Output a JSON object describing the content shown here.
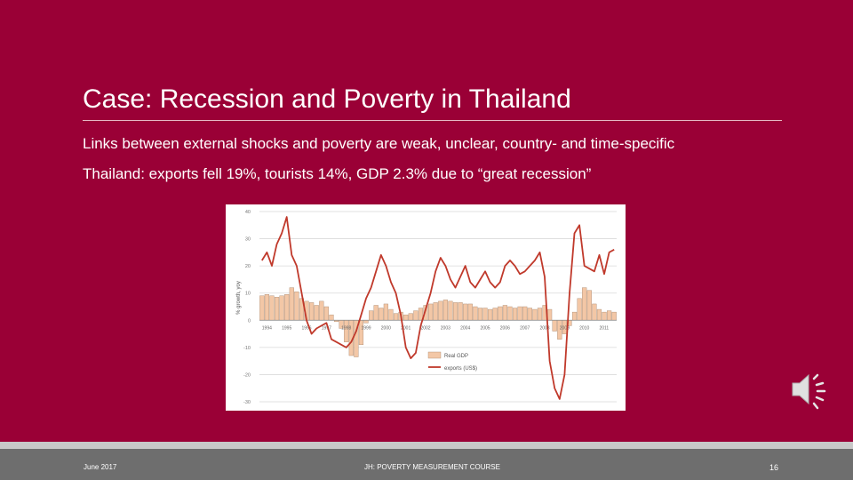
{
  "slide": {
    "title": "Case: Recession and Poverty in Thailand",
    "bullets": [
      "Links between external shocks and poverty are weak, unclear, country- and time-specific",
      "Thailand: exports fell 19%, tourists 14%, GDP 2.3% due to “great recession”"
    ]
  },
  "footer": {
    "date": "June 2017",
    "course": "JH: POVERTY MEASUREMENT COURSE",
    "page": "16"
  },
  "colors": {
    "background": "#9a0036",
    "gdp_bar": "#f3c7a6",
    "exports_line": "#c0392b"
  },
  "icons": {
    "audio": "speaker-icon"
  },
  "chart_data": {
    "type": "bar",
    "ylabel": "% growth, yoy",
    "ylim": [
      -30,
      40
    ],
    "yticks": [
      -30,
      -20,
      -10,
      0,
      10,
      20,
      30,
      40
    ],
    "grid": true,
    "legend_position": "bottom-center",
    "legend": [
      "Real GDP",
      "exports (US$)"
    ],
    "year_labels": [
      "1994",
      "1995",
      "1996",
      "1997",
      "1998",
      "1999",
      "2000",
      "2001",
      "2002",
      "2003",
      "2004",
      "2005",
      "2006",
      "2007",
      "2008",
      "2009",
      "2010",
      "2011"
    ],
    "x_quarters": 72,
    "series": [
      {
        "name": "Real GDP",
        "kind": "bar",
        "values": [
          9,
          9.5,
          9,
          8.5,
          9,
          9.5,
          12,
          10.5,
          8,
          7,
          6.5,
          5.5,
          7,
          5,
          2,
          -0.5,
          -3,
          -8,
          -13,
          -13.5,
          -9,
          -1,
          3.5,
          5.5,
          4.5,
          6,
          4,
          2.5,
          3,
          2,
          2.5,
          3.5,
          4.5,
          5.5,
          6,
          6.5,
          7,
          7.5,
          7,
          6.5,
          6.5,
          6,
          6,
          5,
          4.5,
          4.5,
          4,
          4.5,
          5,
          5.5,
          5,
          4.5,
          5,
          5,
          4.5,
          4,
          4.5,
          5.5,
          4,
          -4,
          -7,
          -5,
          -2,
          3,
          8,
          12,
          11,
          6,
          4,
          3,
          3.5,
          3
        ]
      },
      {
        "name": "exports (US$)",
        "kind": "line",
        "values": [
          22,
          25,
          20,
          28,
          32,
          38,
          24,
          20,
          10,
          0,
          -5,
          -3,
          -2,
          -1,
          -7,
          -8,
          -9,
          -10,
          -8,
          -4,
          2,
          8,
          12,
          18,
          24,
          20,
          14,
          10,
          2,
          -10,
          -14,
          -12,
          -2,
          4,
          10,
          18,
          23,
          20,
          15,
          12,
          16,
          20,
          14,
          12,
          15,
          18,
          14,
          12,
          14,
          20,
          22,
          20,
          17,
          18,
          20,
          22,
          25,
          16,
          -15,
          -25,
          -29,
          -20,
          10,
          32,
          35,
          20,
          19,
          18,
          24,
          17,
          25,
          26
        ]
      }
    ]
  }
}
